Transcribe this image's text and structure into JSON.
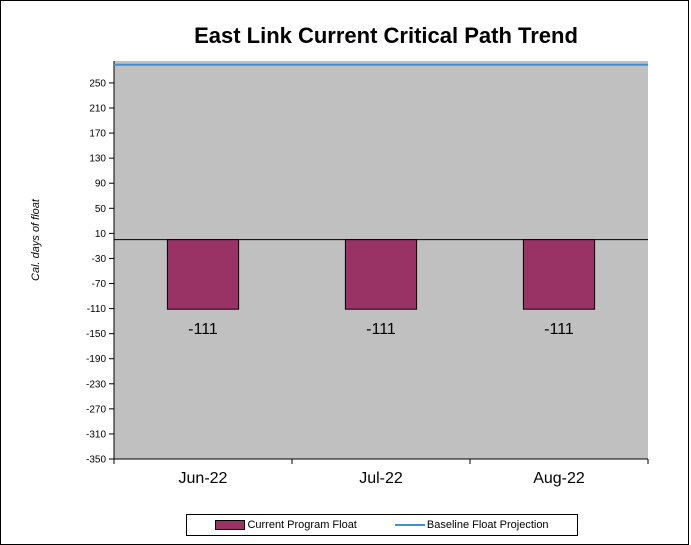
{
  "chart_data": {
    "type": "bar",
    "title": "East Link Current Critical Path Trend",
    "ylabel": "Cal. days of float",
    "xlabel": "",
    "categories": [
      "Jun-22",
      "Jul-22",
      "Aug-22"
    ],
    "series": [
      {
        "name": "Current Program Float",
        "type": "bar",
        "values": [
          -111,
          -111,
          -111
        ],
        "color": "#993366"
      },
      {
        "name": "Baseline Float Projection",
        "type": "line",
        "values": [
          279,
          279,
          279
        ],
        "color": "#3f8fd2"
      }
    ],
    "data_labels": [
      "-111",
      "-111",
      "-111"
    ],
    "yticks": [
      250,
      210,
      170,
      130,
      90,
      50,
      10,
      -30,
      -70,
      -110,
      -150,
      -190,
      -230,
      -270,
      -310,
      -350
    ],
    "ylim": [
      -350,
      285
    ],
    "grid": false,
    "plot_background": "#c0c0c0",
    "legend_position": "bottom"
  }
}
